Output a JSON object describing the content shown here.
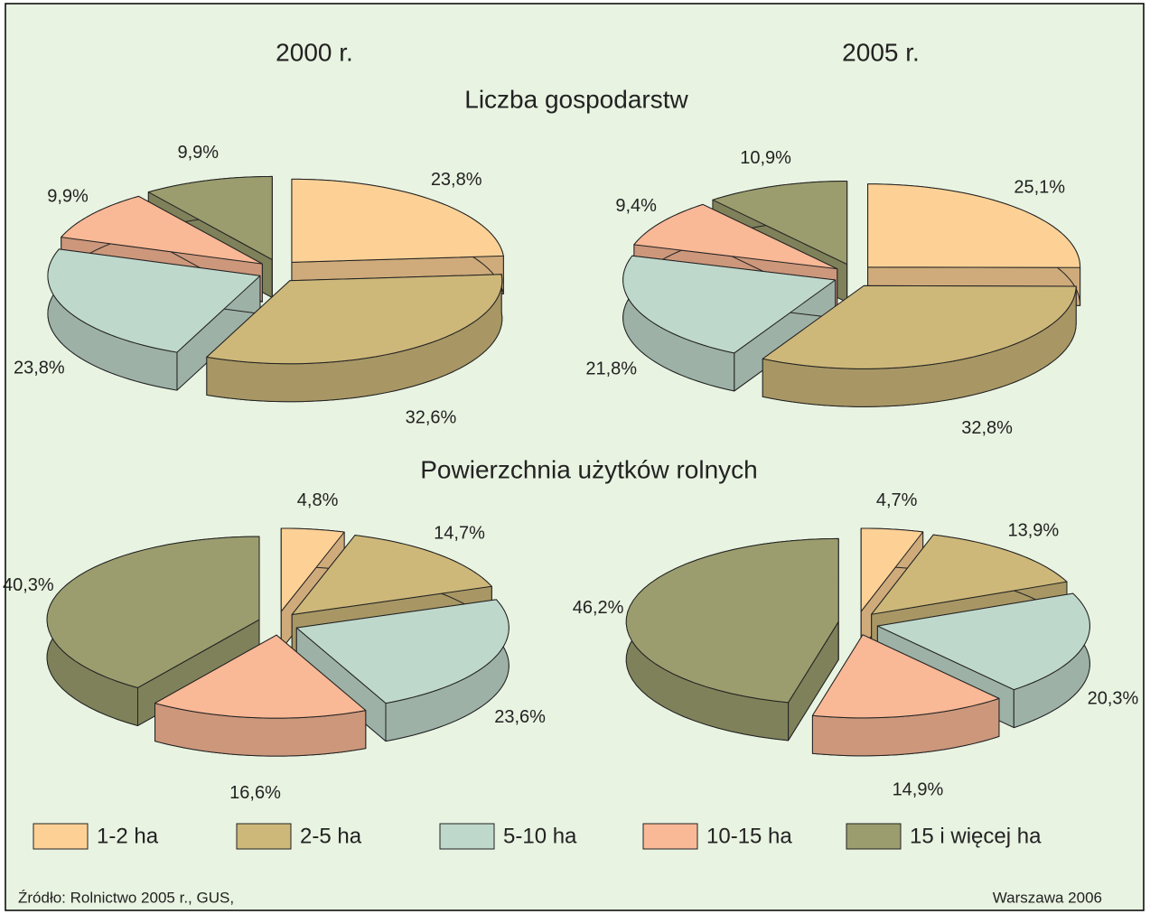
{
  "columns": [
    "2000 r.",
    "2005 r."
  ],
  "rows": [
    "Liczba gospodarstw",
    "Powierzchnia użytków rolnych"
  ],
  "legend": {
    "categories": [
      "1-2 ha",
      "2-5 ha",
      "5-10 ha",
      "10-15 ha",
      "15 i więcej ha"
    ],
    "colors": [
      "#fdd196",
      "#cdb87a",
      "#bfd8cc",
      "#f9b896",
      "#9b9d6e"
    ]
  },
  "chart_data": [
    {
      "type": "pie",
      "values": [
        23.8,
        32.6,
        23.8,
        9.9,
        9.9
      ],
      "value_labels": [
        "23,8%",
        "32,6%",
        "23,8%",
        "9,9%",
        "9,9%"
      ]
    },
    {
      "type": "pie",
      "values": [
        25.1,
        32.8,
        21.8,
        9.4,
        10.9
      ],
      "value_labels": [
        "25,1%",
        "32,8%",
        "21,8%",
        "9,4%",
        "10,9%"
      ]
    },
    {
      "type": "pie",
      "values": [
        4.8,
        14.7,
        23.6,
        16.6,
        40.3
      ],
      "value_labels": [
        "4,8%",
        "14,7%",
        "23,6%",
        "16,6%",
        "40,3%"
      ]
    },
    {
      "type": "pie",
      "values": [
        4.7,
        13.9,
        20.3,
        14.9,
        46.2
      ],
      "value_labels": [
        "4,7%",
        "13,9%",
        "20,3%",
        "14,9%",
        "46,2%"
      ]
    }
  ],
  "source": "Źródło: Rolnictwo 2005 r., GUS,",
  "footer": "Warszawa 2006"
}
